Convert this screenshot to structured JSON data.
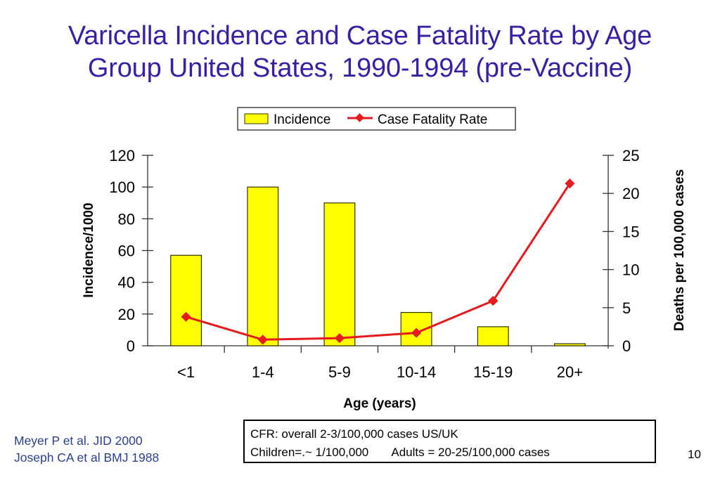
{
  "slide": {
    "title_lines": [
      "Varicella Incidence and Case Fatality Rate by Age",
      "Group United States, 1990-1994 (pre-Vaccine)"
    ],
    "references": [
      "Meyer P et al. JID 2000",
      "Joseph CA et al BMJ 1988"
    ],
    "note": {
      "line1": "CFR: overall 2-3/100,000 cases US/UK",
      "line2_left": "Children=.~ 1/100,000",
      "line2_right": "Adults = 20-25/100,000 cases"
    },
    "page_number": "10"
  },
  "colors": {
    "title": "#3a1ea6",
    "bar_fill": "#ffff00",
    "bar_stroke": "#333300",
    "line": "#e41a1c",
    "references": "#2b3f8f"
  },
  "chart_data": {
    "type": "bar",
    "title": "Varicella Incidence and Case Fatality Rate by Age Group United States, 1990-1994 (pre-Vaccine)",
    "xlabel": "Age (years)",
    "ylabel": "Incidence/1000",
    "y2label": "Deaths per 100,000 cases",
    "categories": [
      "<1",
      "1-4",
      "5-9",
      "10-14",
      "15-19",
      "20+"
    ],
    "ylim": [
      0,
      120
    ],
    "yticks": [
      0,
      20,
      40,
      60,
      80,
      100,
      120
    ],
    "y2lim": [
      0,
      25
    ],
    "y2ticks": [
      0,
      5,
      10,
      15,
      20,
      25
    ],
    "grid": false,
    "legend_position": "top-center",
    "series": [
      {
        "name": "Incidence",
        "type": "bar",
        "axis": "left",
        "values": [
          57,
          100,
          90,
          21,
          12,
          1.3
        ]
      },
      {
        "name": "Case Fatality Rate",
        "type": "line",
        "axis": "right",
        "marker": "diamond",
        "values": [
          3.8,
          0.8,
          1.0,
          1.7,
          5.9,
          21.3
        ]
      }
    ]
  }
}
